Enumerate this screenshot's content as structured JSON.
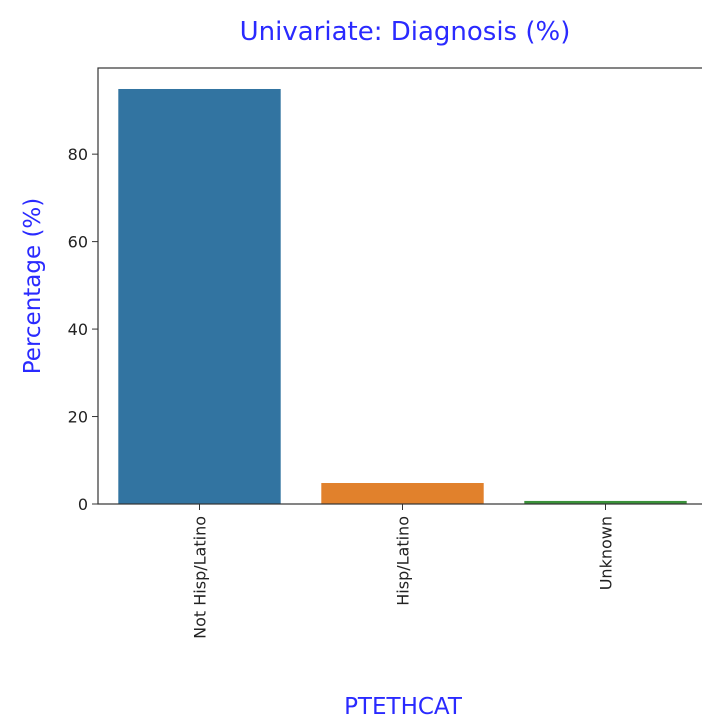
{
  "chart_data": {
    "type": "bar",
    "title": "Univariate: Diagnosis (%)",
    "x_label": "PTETHCAT",
    "y_label": "Percentage (%)",
    "categories": [
      "Not Hisp/Latino",
      "Hisp/Latino",
      "Unknown"
    ],
    "values": [
      94.9,
      4.8,
      0.7
    ],
    "colors": [
      "#3274a1",
      "#e1812c",
      "#3a923a"
    ],
    "ylim": [
      0,
      99.7
    ],
    "yticks": [
      0,
      20,
      40,
      60,
      80
    ],
    "grid": false
  }
}
